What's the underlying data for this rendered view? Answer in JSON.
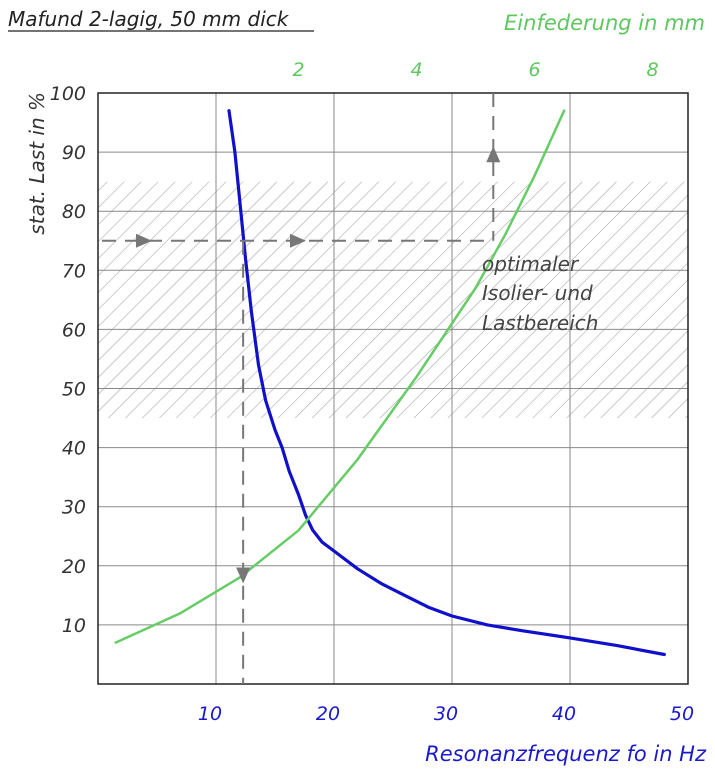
{
  "chart_data": {
    "type": "line",
    "title": "Mafund 2-lagig, 50 mm dick",
    "xlabel": "Resonanzfrequenz fo in Hz",
    "ylabel": "stat. Last in %",
    "x2label": "Einfederung in mm",
    "xlim": [
      0,
      50
    ],
    "ylim": [
      0,
      100
    ],
    "x2lim": [
      -1.4,
      8.6
    ],
    "x_ticks": [
      "10",
      "20",
      "30",
      "40",
      "50"
    ],
    "x_tick_values": [
      10,
      20,
      30,
      40,
      50
    ],
    "y_ticks": [
      "10",
      "20",
      "30",
      "40",
      "50",
      "60",
      "70",
      "80",
      "90",
      "100"
    ],
    "y_tick_values": [
      10,
      20,
      30,
      40,
      50,
      60,
      70,
      80,
      90,
      100
    ],
    "x2_ticks": [
      "2",
      "4",
      "6",
      "8"
    ],
    "x2_tick_values": [
      2,
      4,
      6,
      8
    ],
    "grid": true,
    "annotation": [
      "optimaler",
      "Isolier- und",
      "Lastbereich"
    ],
    "optimal_band": [
      45,
      85
    ],
    "example": {
      "load": 75,
      "frequency": 12.3,
      "deflection": 5.3
    },
    "series": [
      {
        "axis": "bottom",
        "color": "#1010cc",
        "x": [
          11.1,
          11.6,
          12.1,
          12.5,
          13.0,
          13.6,
          14.2,
          15.0,
          15.6,
          16.2,
          17.0,
          17.6,
          18.2,
          19.0,
          20.0,
          22.0,
          24.0,
          26.0,
          28.0,
          30.0,
          33.0,
          36.0,
          40.0,
          44.0,
          48.0
        ],
        "y": [
          97,
          90,
          80,
          72,
          63,
          54,
          48,
          43,
          40,
          36,
          32,
          28.5,
          26,
          24,
          22.5,
          19.5,
          17,
          15,
          13,
          11.5,
          10,
          9,
          7.8,
          6.5,
          5
        ]
      },
      {
        "axis": "top",
        "color": "#66cc66",
        "x": [
          -1.1,
          0,
          1,
          2,
          3,
          4,
          5,
          5.5,
          6,
          6.5
        ],
        "y": [
          7,
          12,
          18,
          26,
          38,
          52,
          67,
          76,
          86,
          97
        ]
      }
    ]
  }
}
